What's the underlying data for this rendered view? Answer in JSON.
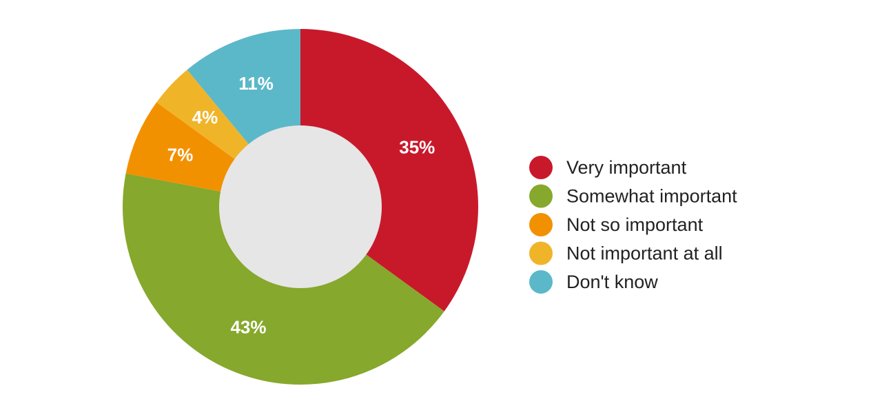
{
  "chart_data": {
    "type": "pie",
    "variant": "donut",
    "center_color": "#e6e6e6",
    "legend_position": "right",
    "slices": [
      {
        "label": "Very important",
        "value": 35,
        "display": "35%",
        "color": "#c8192b"
      },
      {
        "label": "Somewhat important",
        "value": 43,
        "display": "43%",
        "color": "#86a82c"
      },
      {
        "label": "Not so important",
        "value": 7,
        "display": "7%",
        "color": "#f29100"
      },
      {
        "label": "Not important at all",
        "value": 4,
        "display": "4%",
        "color": "#f0b429"
      },
      {
        "label": "Don't know",
        "value": 11,
        "display": "11%",
        "color": "#5bb8c9"
      }
    ]
  }
}
